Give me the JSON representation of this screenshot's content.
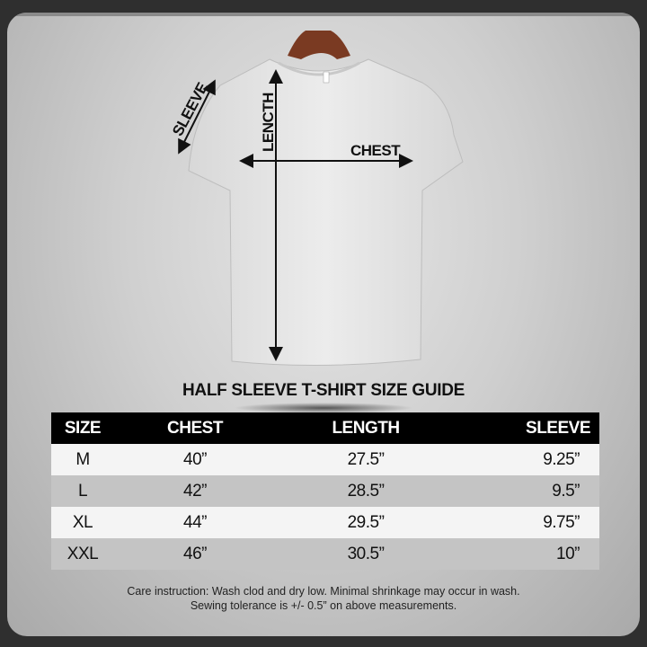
{
  "labels": {
    "sleeve": "SLEEVE",
    "length": "LENCTH",
    "chest": "CHEST"
  },
  "title": "HALF SLEEVE T-SHIRT SIZE GUIDE",
  "table": {
    "headers": [
      "SIZE",
      "CHEST",
      "LENGTH",
      "SLEEVE"
    ],
    "rows": [
      [
        "M",
        "40”",
        "27.5”",
        "9.25”"
      ],
      [
        "L",
        "42”",
        "28.5”",
        "9.5”"
      ],
      [
        "XL",
        "44”",
        "29.5”",
        "9.75”"
      ],
      [
        "XXL",
        "46”",
        "30.5”",
        "10”"
      ]
    ]
  },
  "footer": {
    "line1": "Care instruction: Wash clod and dry low. Minimal shrinkage may occur in wash.",
    "line2": "Sewing tolerance is +/- 0.5” on above measurements."
  },
  "colors": {
    "header_bg": "#000000",
    "row_light": "#f4f4f4",
    "row_dark": "#c4c4c4",
    "hanger": "#7a3a22"
  }
}
